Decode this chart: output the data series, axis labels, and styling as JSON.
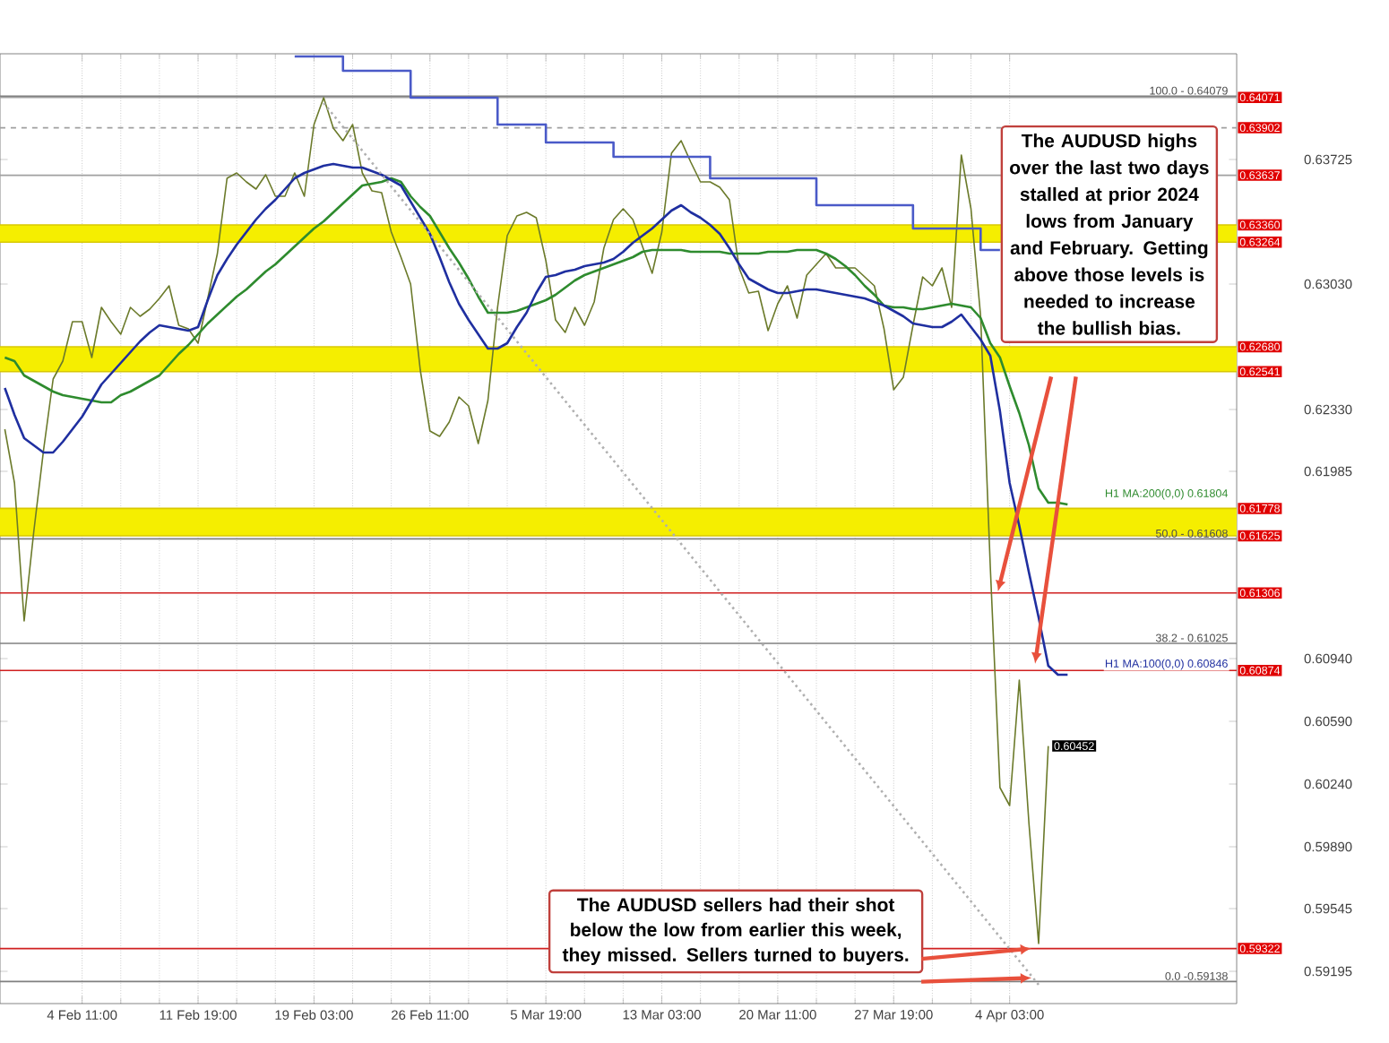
{
  "chart_data": {
    "type": "line",
    "grid": "x",
    "categories": [
      null,
      null,
      null,
      null,
      null,
      null,
      null,
      null,
      "4 Feb 11:00",
      null,
      null,
      null,
      null,
      null,
      null,
      null,
      null,
      null,
      null,
      null,
      "11 Feb 19:00",
      null,
      null,
      null,
      null,
      null,
      null,
      null,
      null,
      null,
      null,
      null,
      "19 Feb 03:00",
      null,
      null,
      null,
      null,
      null,
      null,
      null,
      null,
      null,
      null,
      null,
      "26 Feb 11:00",
      null,
      null,
      null,
      null,
      null,
      null,
      null,
      null,
      null,
      null,
      null,
      "5 Mar 19:00",
      null,
      null,
      null,
      null,
      null,
      null,
      null,
      null,
      null,
      null,
      null,
      "13 Mar 03:00",
      null,
      null,
      null,
      null,
      null,
      null,
      null,
      null,
      null,
      null,
      null,
      "20 Mar 11:00",
      null,
      null,
      null,
      null,
      null,
      null,
      null,
      null,
      null,
      null,
      null,
      "27 Mar 19:00",
      null,
      null,
      null,
      null,
      null,
      null,
      null,
      null,
      null,
      null,
      null,
      "4 Apr 03:00",
      null,
      null,
      null,
      null,
      null,
      null,
      null,
      null,
      null,
      null,
      null,
      null,
      null,
      null,
      null,
      null,
      null,
      null,
      null,
      null,
      null,
      null,
      null
    ],
    "ylim": [
      0.59015,
      0.64315
    ],
    "yticks": [
      0.59195,
      0.59545,
      {
        "value": 0.5989,
        "label": "0.59890"
      },
      {
        "value": 0.6024,
        "label": "0.60240"
      },
      {
        "value": 0.6059,
        "label": "0.60590"
      },
      {
        "value": 0.6094,
        "label": "0.60940"
      },
      0.61985,
      {
        "value": 0.6233,
        "label": "0.62330"
      },
      {
        "value": 0.6303,
        "label": "0.63030"
      },
      0.63725
    ],
    "series": [
      {
        "color": "#6b7a2a",
        "values": [
          0.6222,
          0.6192,
          0.6115,
          0.6165,
          0.621,
          0.625,
          0.626,
          0.6282,
          0.6282,
          0.6262,
          0.629,
          0.6282,
          0.6275,
          0.629,
          0.6285,
          0.6289,
          0.6295,
          0.6302,
          0.628,
          0.6278,
          0.627,
          0.6295,
          0.632,
          0.6362,
          0.6365,
          0.636,
          0.6356,
          0.6364,
          0.6352,
          0.6352,
          0.6365,
          0.6352,
          0.6392,
          0.6407,
          0.639,
          0.6383,
          0.6392,
          0.6365,
          0.6355,
          0.6354,
          0.6332,
          0.6318,
          0.6303,
          0.6255,
          0.6221,
          0.6218,
          0.6226,
          0.624,
          0.6235,
          0.6214,
          0.6238,
          0.629,
          0.633,
          0.6341,
          0.6343,
          0.634,
          0.6316,
          0.6283,
          0.6276,
          0.629,
          0.628,
          0.6293,
          0.6323,
          0.6339,
          0.6345,
          0.6339,
          0.6324,
          0.6309,
          0.6332,
          0.6376,
          0.6383,
          0.6371,
          0.636,
          0.636,
          0.6357,
          0.635,
          0.6312,
          0.6298,
          0.6299,
          0.6277,
          0.6292,
          0.6302,
          0.6284,
          0.6308,
          0.6314,
          0.632,
          0.6312,
          0.6312,
          0.6312,
          0.6307,
          0.6302,
          0.6278,
          0.6244,
          0.6251,
          0.628,
          0.6307,
          0.6302,
          0.6312,
          0.629,
          0.6375,
          0.6345,
          0.6285,
          0.6145,
          0.6022,
          0.6012,
          0.6082,
          0.6002,
          0.5935,
          0.60452,
          null,
          null,
          null,
          null,
          null,
          null,
          null,
          null,
          null,
          null,
          null,
          null,
          null,
          null,
          null,
          null,
          null,
          null,
          null
        ],
        "value_labels": [
          null,
          null,
          null,
          null,
          null,
          null,
          null,
          null,
          null,
          null,
          null,
          null,
          null,
          null,
          null,
          null,
          null,
          null,
          null,
          null,
          null,
          null,
          null,
          null,
          null,
          null,
          null,
          null,
          null,
          null,
          null,
          null,
          null,
          null,
          null,
          null,
          null,
          null,
          null,
          null,
          null,
          null,
          null,
          null,
          null,
          null,
          null,
          null,
          null,
          null,
          null,
          null,
          null,
          null,
          null,
          null,
          null,
          null,
          null,
          null,
          null,
          null,
          null,
          null,
          null,
          null,
          null,
          null,
          null,
          null,
          null,
          null,
          null,
          null,
          null,
          null,
          null,
          null,
          null,
          null,
          null,
          null,
          null,
          null,
          null,
          null,
          null,
          null,
          null,
          null,
          null,
          null,
          null,
          null,
          null,
          null,
          null,
          null,
          null,
          null,
          null,
          null,
          null,
          null,
          null,
          null,
          null,
          null,
          "0.60452",
          null,
          null,
          null,
          null,
          null,
          null,
          null,
          null,
          null,
          null,
          null,
          null,
          null,
          null,
          null,
          null,
          null,
          null,
          null
        ]
      },
      {
        "name": "H1 MA:200(0,0) 0.61804",
        "color": "#2e8b2e",
        "values": [
          0.6262,
          0.626,
          0.6252,
          0.6249,
          0.6246,
          0.6243,
          0.6241,
          0.624,
          0.6239,
          0.6238,
          0.6237,
          0.6237,
          0.6241,
          0.6243,
          0.6246,
          0.6249,
          0.6252,
          0.6258,
          0.6264,
          0.6269,
          0.6275,
          0.6281,
          0.6286,
          0.6291,
          0.6296,
          0.63,
          0.6305,
          0.631,
          0.6314,
          0.6319,
          0.6324,
          0.6329,
          0.6334,
          0.6338,
          0.6343,
          0.6348,
          0.6353,
          0.6358,
          0.6359,
          0.636,
          0.6362,
          0.636,
          0.6352,
          0.6346,
          0.6341,
          0.6332,
          0.6323,
          0.6315,
          0.6306,
          0.6296,
          0.6287,
          0.6287,
          0.6287,
          0.6288,
          0.629,
          0.6292,
          0.6294,
          0.6297,
          0.6301,
          0.6305,
          0.6308,
          0.631,
          0.6312,
          0.6314,
          0.6316,
          0.6318,
          0.6321,
          0.6322,
          0.6322,
          0.6322,
          0.6322,
          0.6321,
          0.6321,
          0.6321,
          0.6321,
          0.632,
          0.632,
          0.632,
          0.632,
          0.6321,
          0.6321,
          0.6321,
          0.6322,
          0.6322,
          0.6322,
          0.632,
          0.6317,
          0.6313,
          0.6308,
          0.6302,
          0.6297,
          0.6291,
          0.629,
          0.629,
          0.6289,
          0.6289,
          0.629,
          0.6291,
          0.6292,
          0.6291,
          0.629,
          0.6284,
          0.627,
          0.6262,
          0.6246,
          0.6231,
          0.6213,
          0.6189,
          0.6181,
          0.6181,
          0.618,
          null,
          null,
          null,
          null,
          null,
          null,
          null,
          null,
          null,
          null,
          null,
          null,
          null,
          null,
          null,
          null,
          null
        ]
      },
      {
        "name": "H1 MA:100(0,0) 0.60846",
        "color": "#1f2fa0",
        "values": [
          0.6245,
          0.623,
          0.6217,
          0.6213,
          0.6209,
          0.6209,
          0.6215,
          0.6222,
          0.6229,
          0.6238,
          0.6247,
          0.6253,
          0.6259,
          0.6265,
          0.6271,
          0.6276,
          0.628,
          0.6279,
          0.6278,
          0.6277,
          0.6279,
          0.6294,
          0.6308,
          0.6317,
          0.6325,
          0.6332,
          0.6339,
          0.6345,
          0.635,
          0.6356,
          0.6362,
          0.6365,
          0.6367,
          0.6369,
          0.637,
          0.6369,
          0.6368,
          0.6368,
          0.6366,
          0.6364,
          0.6361,
          0.6358,
          0.6349,
          0.634,
          0.6331,
          0.6318,
          0.6304,
          0.6292,
          0.6283,
          0.6275,
          0.6267,
          0.6267,
          0.627,
          0.6279,
          0.6287,
          0.6298,
          0.6307,
          0.6308,
          0.631,
          0.6311,
          0.6313,
          0.6314,
          0.6315,
          0.6317,
          0.6321,
          0.6326,
          0.633,
          0.6334,
          0.6339,
          0.6344,
          0.6347,
          0.6343,
          0.634,
          0.6336,
          0.6331,
          0.6323,
          0.6314,
          0.6306,
          0.6303,
          0.63,
          0.6298,
          0.6298,
          0.6299,
          0.63,
          0.63,
          0.6299,
          0.6298,
          0.6297,
          0.6296,
          0.6295,
          0.6293,
          0.6291,
          0.6288,
          0.6285,
          0.6281,
          0.628,
          0.6279,
          0.6279,
          0.6282,
          0.6286,
          0.6279,
          0.6272,
          0.6263,
          0.6232,
          0.6192,
          0.6168,
          0.6142,
          0.6117,
          0.609,
          0.6085,
          0.6085,
          null,
          null,
          null,
          null,
          null,
          null,
          null,
          null,
          null,
          null,
          null,
          null,
          null,
          null,
          null,
          null,
          null
        ]
      },
      {
        "type": "step",
        "color": "#4a5ac8",
        "values": [
          null,
          null,
          null,
          null,
          null,
          null,
          null,
          null,
          null,
          null,
          null,
          null,
          null,
          null,
          null,
          null,
          null,
          null,
          null,
          null,
          null,
          null,
          null,
          null,
          null,
          null,
          null,
          null,
          null,
          null,
          0.643,
          0.643,
          0.643,
          0.643,
          0.643,
          0.6422,
          0.6422,
          0.6422,
          0.6422,
          0.6422,
          0.6422,
          0.6422,
          0.6407,
          0.6407,
          0.6407,
          0.6407,
          0.6407,
          0.6407,
          0.6407,
          0.6407,
          0.6407,
          0.6392,
          0.6392,
          0.6392,
          0.6392,
          0.6392,
          0.6382,
          0.6382,
          0.6382,
          0.6382,
          0.6382,
          0.6382,
          0.6382,
          0.6374,
          0.6374,
          0.6374,
          0.6374,
          0.6374,
          0.6374,
          0.6374,
          0.6374,
          0.6374,
          0.6374,
          0.6362,
          0.6362,
          0.6362,
          0.6362,
          0.6362,
          0.6362,
          0.6362,
          0.6362,
          0.6362,
          0.6362,
          0.6362,
          0.6347,
          0.6347,
          0.6347,
          0.6347,
          0.6347,
          0.6347,
          0.6347,
          0.6347,
          0.6347,
          0.6347,
          0.6334,
          0.6334,
          0.6334,
          0.6334,
          0.6334,
          0.6334,
          0.6334,
          0.6322,
          0.6322,
          0.6322,
          null,
          null,
          null,
          null,
          null,
          null,
          null,
          null,
          null,
          null,
          null,
          null,
          null,
          null,
          null,
          null,
          null,
          null,
          null,
          null,
          null,
          null,
          null,
          null
        ]
      },
      {
        "line_style": "dotted",
        "color": "#b0b0b0",
        "values": [
          null,
          null,
          null,
          null,
          null,
          null,
          null,
          null,
          null,
          null,
          null,
          null,
          null,
          null,
          null,
          null,
          null,
          null,
          null,
          null,
          null,
          null,
          null,
          null,
          null,
          null,
          null,
          null,
          null,
          null,
          null,
          null,
          null,
          0.6404,
          null,
          null,
          null,
          null,
          null,
          null,
          null,
          null,
          null,
          null,
          null,
          null,
          null,
          null,
          null,
          null,
          null,
          null,
          null,
          null,
          null,
          null,
          null,
          null,
          null,
          null,
          null,
          null,
          null,
          null,
          null,
          null,
          null,
          null,
          null,
          null,
          null,
          null,
          null,
          null,
          null,
          null,
          null,
          null,
          null,
          null,
          null,
          null,
          null,
          null,
          null,
          null,
          null,
          null,
          null,
          null,
          null,
          null,
          null,
          null,
          null,
          null,
          null,
          null,
          null,
          null,
          null,
          null,
          null,
          null,
          null,
          null,
          null,
          0.5912,
          null,
          null,
          null,
          null,
          null,
          null,
          null,
          null,
          null,
          null,
          null,
          null,
          null,
          null,
          null,
          null,
          null,
          null,
          null,
          null
        ]
      }
    ],
    "bands": [
      {
        "axis": "y",
        "from": 0.63264,
        "to": 0.6336,
        "color": "#f5ee00"
      },
      {
        "axis": "y",
        "from": 0.62541,
        "to": 0.6268,
        "color": "#f5ee00"
      },
      {
        "axis": "y",
        "from": 0.61625,
        "to": 0.61778,
        "color": "#f5ee00"
      }
    ],
    "ref_lines": [
      {
        "axis": "y",
        "value": 0.64071,
        "label": "0.64071",
        "color": "#a0a0a0"
      },
      {
        "axis": "y",
        "value": 0.64079,
        "color": "#808080"
      },
      {
        "axis": "y",
        "value": 0.63902,
        "label": "0.63902",
        "color": "#a0a0a0",
        "line_style": "dashed"
      },
      {
        "axis": "y",
        "value": 0.63637,
        "label": "0.63637",
        "color": "#a0a0a0"
      },
      {
        "axis": "y",
        "value": 0.6336,
        "label": "0.63360",
        "color": "#d8c800"
      },
      {
        "axis": "y",
        "value": 0.63264,
        "label": "0.63264",
        "color": "#d8c800"
      },
      {
        "axis": "y",
        "value": 0.6268,
        "label": "0.62680",
        "color": "#d8c800"
      },
      {
        "axis": "y",
        "value": 0.62541,
        "label": "0.62541",
        "color": "#d8c800"
      },
      {
        "axis": "y",
        "value": 0.61778,
        "label": "0.61778",
        "color": "#d8c800"
      },
      {
        "axis": "y",
        "value": 0.61625,
        "label": "0.61625",
        "color": "#d8c800"
      },
      {
        "axis": "y",
        "value": 0.61608,
        "color": "#808080"
      },
      {
        "axis": "y",
        "value": 0.61306,
        "label": "0.61306",
        "color": "#d02020"
      },
      {
        "axis": "y",
        "value": 0.61025,
        "color": "#808080"
      },
      {
        "axis": "y",
        "value": 0.60874,
        "label": "0.60874",
        "color": "#d02020"
      },
      {
        "axis": "y",
        "value": 0.59322,
        "label": "0.59322",
        "color": "#d02020"
      },
      {
        "axis": "y",
        "value": 0.59138,
        "color": "#808080"
      }
    ],
    "annotations": [
      "The AUDUSD highs over the last two days stalled at prior 2024 lows from January and February. Getting above those levels is needed to increase the bullish bias.",
      {
        "text": "The AUDUSD sellers had their shot below the low from earlier this week, they missed.  Sellers turned to buyers.",
        "y": 0.59322
      },
      {
        "text": "100.0 - 0.64079",
        "y": 0.64079
      },
      {
        "text": "50.0 - 0.61608",
        "y": 0.61608
      },
      {
        "text": "38.2 - 0.61025",
        "y": 0.61025
      },
      {
        "text": "0.0 -0.59138",
        "y": 0.59138
      }
    ]
  }
}
